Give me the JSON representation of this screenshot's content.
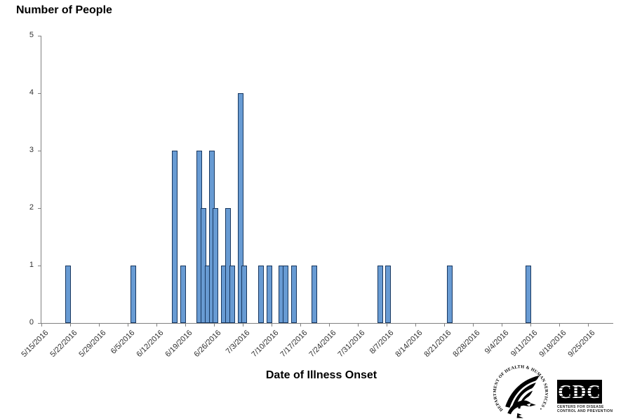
{
  "chart": {
    "title": "Number of People",
    "xlabel": "Date of Illness Onset"
  },
  "chart_data": {
    "type": "bar",
    "title": "Number of People",
    "xlabel": "Date of Illness Onset",
    "ylabel": "Number of People",
    "ylim": [
      0,
      5
    ],
    "y_ticks": [
      0,
      1,
      2,
      3,
      4,
      5
    ],
    "grid": false,
    "legend": false,
    "x_tick_labels": [
      "5/15/2016",
      "5/22/2016",
      "5/29/2016",
      "6/5/2016",
      "6/12/2016",
      "6/19/2016",
      "6/26/2016",
      "7/3/2016",
      "7/10/2016",
      "7/17/2016",
      "7/24/2016",
      "7/31/2016",
      "8/7/2016",
      "8/14/2016",
      "8/21/2016",
      "8/28/2016",
      "9/4/2016",
      "9/11/2016",
      "9/18/2016",
      "9/25/2016"
    ],
    "x_axis_start": "5/15/2016",
    "points": [
      {
        "date": "5/21/2016",
        "count": 1
      },
      {
        "date": "6/6/2016",
        "count": 1
      },
      {
        "date": "6/16/2016",
        "count": 3
      },
      {
        "date": "6/18/2016",
        "count": 1
      },
      {
        "date": "6/22/2016",
        "count": 3
      },
      {
        "date": "6/23/2016",
        "count": 2
      },
      {
        "date": "6/24/2016",
        "count": 1
      },
      {
        "date": "6/25/2016",
        "count": 3
      },
      {
        "date": "6/26/2016",
        "count": 2
      },
      {
        "date": "6/28/2016",
        "count": 1
      },
      {
        "date": "6/29/2016",
        "count": 2
      },
      {
        "date": "6/30/2016",
        "count": 1
      },
      {
        "date": "7/2/2016",
        "count": 4
      },
      {
        "date": "7/3/2016",
        "count": 1
      },
      {
        "date": "7/7/2016",
        "count": 1
      },
      {
        "date": "7/9/2016",
        "count": 1
      },
      {
        "date": "7/12/2016",
        "count": 1
      },
      {
        "date": "7/13/2016",
        "count": 1
      },
      {
        "date": "7/15/2016",
        "count": 1
      },
      {
        "date": "7/20/2016",
        "count": 1
      },
      {
        "date": "8/5/2016",
        "count": 1
      },
      {
        "date": "8/7/2016",
        "count": 1
      },
      {
        "date": "8/22/2016",
        "count": 1
      },
      {
        "date": "9/10/2016",
        "count": 1
      }
    ],
    "bar_color": "#689BD3",
    "bar_border_color": "#18375F",
    "axis_color": "#808080",
    "tick_label_color": "#303030"
  },
  "logos": {
    "hhs_seal_text": "DEPARTMENT OF HEALTH & HUMAN SERVICES • USA",
    "cdc_acronym": "CDC",
    "cdc_name_line1": "CENTERS FOR DISEASE",
    "cdc_name_line2": "CONTROL AND PREVENTION"
  }
}
